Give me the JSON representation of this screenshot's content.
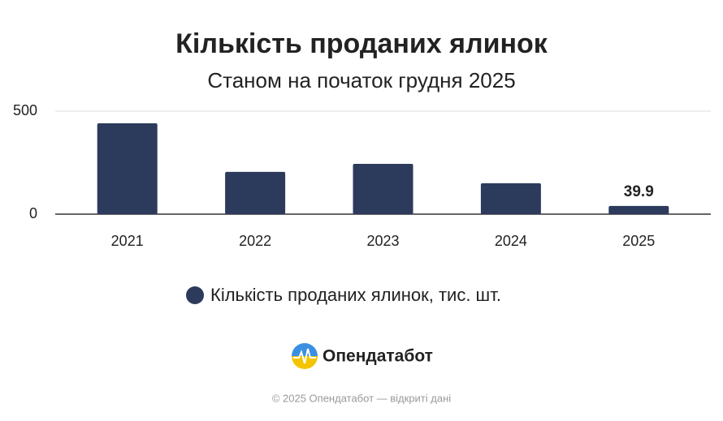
{
  "chart_data": {
    "type": "bar",
    "title": "Кількість проданих ялинок",
    "subtitle": "Станом на початок грудня 2025",
    "categories": [
      "2021",
      "2022",
      "2023",
      "2024",
      "2025"
    ],
    "series": [
      {
        "name": "Кількість проданих ялинок, тис. шт.",
        "color": "#2c3a5c",
        "values": [
          441,
          205,
          244,
          150,
          39.9
        ],
        "value_labels": [
          null,
          null,
          null,
          null,
          "39.9"
        ]
      }
    ],
    "ylim": [
      0,
      500
    ],
    "yticks": [
      0,
      500
    ],
    "grid": true,
    "legend": "bottom"
  },
  "brand": "Опендатабот",
  "footer": "© 2025 Опендатабот — відкриті дані"
}
